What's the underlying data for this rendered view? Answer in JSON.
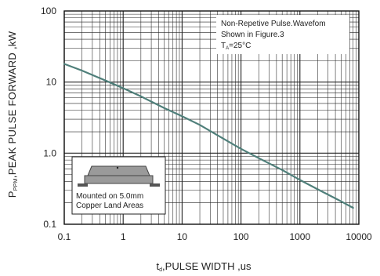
{
  "chart_data": {
    "type": "line",
    "x_scale": "log",
    "y_scale": "log",
    "xlim": [
      0.1,
      10000
    ],
    "ylim": [
      0.1,
      100
    ],
    "grid": true,
    "x_ticks": [
      "0.1",
      "1",
      "10",
      "100",
      "1000",
      "10000"
    ],
    "y_ticks": [
      "0.1",
      "1.0",
      "10",
      "100"
    ],
    "ylabel": {
      "main": "P",
      "sub": "PPM",
      "rest": ",PEAK PULSE FORWARD ,kW"
    },
    "xlabel": {
      "main": "t",
      "sub": "d",
      "rest": ",PULSE WIDTH ,us"
    },
    "annotation": {
      "line1": "Non-Repetive  Pulse.Wavefom",
      "line2": "Shown in Figure.3",
      "line3_main": "T",
      "line3_sub": "A",
      "line3_rest": "=25°C"
    },
    "inset": {
      "line1": "Mounted on 5.0mm",
      "line2": "Copper Land Areas"
    },
    "series": [
      {
        "color": "#4f7f7a",
        "x": [
          0.1,
          0.2,
          0.5,
          1,
          2,
          5,
          10,
          20,
          50,
          100,
          200,
          500,
          1000,
          2000,
          5000,
          8000
        ],
        "y": [
          18,
          14.5,
          10.5,
          8.2,
          6.3,
          4.3,
          3.3,
          2.5,
          1.6,
          1.15,
          0.85,
          0.58,
          0.42,
          0.31,
          0.21,
          0.17
        ]
      }
    ]
  }
}
